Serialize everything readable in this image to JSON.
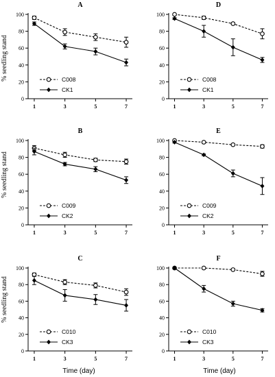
{
  "figure": {
    "ylabel": "% seedling stand",
    "xlabel": "Time (day)"
  },
  "chart_data": [
    {
      "type": "line",
      "title": "A",
      "x": [
        1,
        3,
        5,
        7
      ],
      "xticks": [
        "1",
        "3",
        "5",
        "7"
      ],
      "ylim": [
        0,
        100
      ],
      "yticks": [
        "0",
        "20",
        "40",
        "60",
        "80",
        "100"
      ],
      "series": [
        {
          "name": "C008",
          "marker": "open-circle",
          "line": "dashed",
          "values": [
            96,
            79,
            73,
            67
          ],
          "errors": [
            2,
            4,
            4,
            6
          ]
        },
        {
          "name": "CK1",
          "marker": "filled-diamond",
          "line": "solid",
          "values": [
            89,
            62,
            56,
            43
          ],
          "errors": [
            2,
            3,
            4,
            4
          ]
        }
      ]
    },
    {
      "type": "line",
      "title": "D",
      "x": [
        1,
        3,
        5,
        7
      ],
      "xticks": [
        "1",
        "3",
        "5",
        "7"
      ],
      "ylim": [
        0,
        100
      ],
      "yticks": [
        "0",
        "20",
        "40",
        "60",
        "80",
        "100"
      ],
      "series": [
        {
          "name": "C008",
          "marker": "open-circle",
          "line": "dashed",
          "values": [
            100,
            96,
            89,
            77
          ],
          "errors": [
            1,
            2,
            1,
            6
          ]
        },
        {
          "name": "CK1",
          "marker": "filled-diamond",
          "line": "solid",
          "values": [
            95,
            80,
            61,
            46
          ],
          "errors": [
            1,
            7,
            10,
            3
          ]
        }
      ]
    },
    {
      "type": "line",
      "title": "B",
      "x": [
        1,
        3,
        5,
        7
      ],
      "xticks": [
        "1",
        "3",
        "5",
        "7"
      ],
      "ylim": [
        0,
        100
      ],
      "yticks": [
        "0",
        "20",
        "40",
        "60",
        "80",
        "100"
      ],
      "series": [
        {
          "name": "C009",
          "marker": "open-circle",
          "line": "dashed",
          "values": [
            91,
            83,
            77,
            75
          ],
          "errors": [
            3,
            3,
            2,
            3
          ]
        },
        {
          "name": "CK2",
          "marker": "filled-diamond",
          "line": "solid",
          "values": [
            87,
            72,
            66,
            53
          ],
          "errors": [
            4,
            2,
            3,
            4
          ]
        }
      ]
    },
    {
      "type": "line",
      "title": "E",
      "x": [
        1,
        3,
        5,
        7
      ],
      "xticks": [
        "1",
        "3",
        "5",
        "7"
      ],
      "ylim": [
        0,
        100
      ],
      "yticks": [
        "0",
        "20",
        "40",
        "60",
        "80",
        "100"
      ],
      "series": [
        {
          "name": "C009",
          "marker": "open-circle",
          "line": "dashed",
          "values": [
            100,
            98,
            95,
            93
          ],
          "errors": [
            1,
            1,
            1,
            2
          ]
        },
        {
          "name": "CK2",
          "marker": "filled-diamond",
          "line": "solid",
          "values": [
            98,
            83,
            61,
            46
          ],
          "errors": [
            1,
            1,
            4,
            10
          ]
        }
      ]
    },
    {
      "type": "line",
      "title": "C",
      "x": [
        1,
        3,
        5,
        7
      ],
      "xticks": [
        "1",
        "3",
        "5",
        "7"
      ],
      "ylim": [
        0,
        100
      ],
      "yticks": [
        "0",
        "20",
        "40",
        "60",
        "80",
        "100"
      ],
      "series": [
        {
          "name": "C010",
          "marker": "open-circle",
          "line": "dashed",
          "values": [
            92,
            83,
            79,
            71
          ],
          "errors": [
            2,
            3,
            3,
            4
          ]
        },
        {
          "name": "CK3",
          "marker": "filled-diamond",
          "line": "solid",
          "values": [
            85,
            67,
            62,
            55
          ],
          "errors": [
            5,
            7,
            6,
            7
          ]
        }
      ]
    },
    {
      "type": "line",
      "title": "F",
      "x": [
        1,
        3,
        5,
        7
      ],
      "xticks": [
        "1",
        "3",
        "5",
        "7"
      ],
      "ylim": [
        0,
        100
      ],
      "yticks": [
        "0",
        "20",
        "40",
        "60",
        "80",
        "100"
      ],
      "series": [
        {
          "name": "C010",
          "marker": "open-circle",
          "line": "dashed",
          "values": [
            100,
            100,
            98,
            93
          ],
          "errors": [
            1,
            1,
            1,
            3
          ]
        },
        {
          "name": "CK3",
          "marker": "filled-diamond",
          "line": "solid",
          "values": [
            100,
            75,
            57,
            49
          ],
          "errors": [
            1,
            4,
            3,
            2
          ]
        }
      ]
    }
  ]
}
